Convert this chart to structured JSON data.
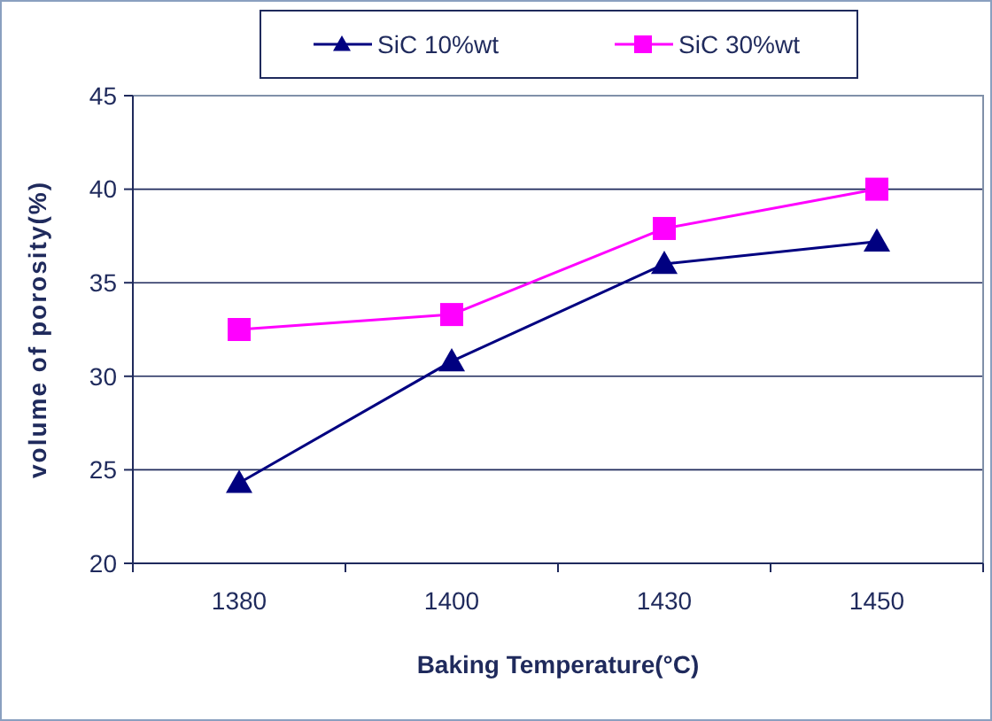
{
  "chart_data": {
    "type": "line",
    "xlabel": "Baking Temperature(°C)",
    "ylabel": "volume of porosity(%)",
    "categories": [
      "1380",
      "1400",
      "1430",
      "1450"
    ],
    "series": [
      {
        "name": "SiC 10%wt",
        "color": "#000080",
        "marker": "triangle",
        "values": [
          24.3,
          30.8,
          36,
          37.2
        ]
      },
      {
        "name": "SiC 30%wt",
        "color": "#ff00ff",
        "marker": "square",
        "values": [
          32.5,
          33.3,
          37.9,
          40
        ]
      }
    ],
    "ylim": [
      20,
      45
    ],
    "yticks": [
      20,
      25,
      30,
      35,
      40,
      45
    ],
    "grid": "y",
    "legend": "top"
  }
}
